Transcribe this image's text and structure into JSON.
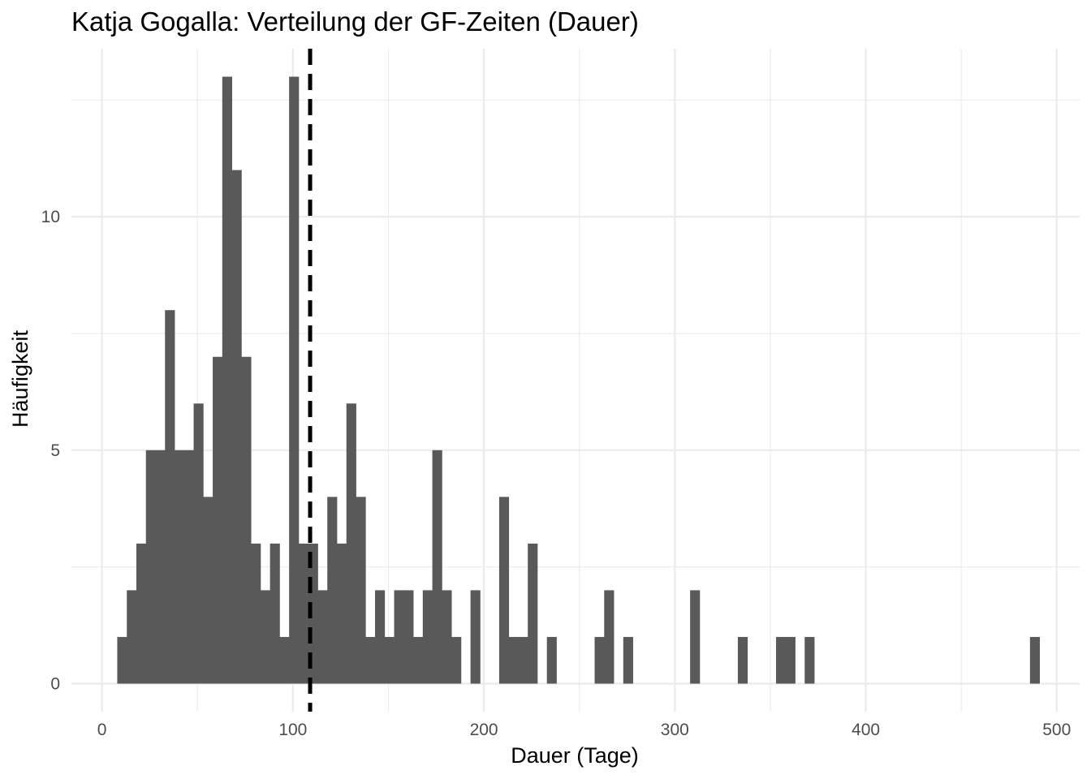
{
  "chart_data": {
    "type": "bar",
    "title": "Katja Gogalla: Verteilung der GF-Zeiten (Dauer)",
    "xlabel": "Dauer (Tage)",
    "ylabel": "Häufigkeit",
    "xlim": [
      -16,
      512
    ],
    "ylim": [
      -0.6,
      13.6
    ],
    "x_ticks": [
      0,
      100,
      200,
      300,
      400,
      500
    ],
    "x_tick_labels": [
      "0",
      "100",
      "200",
      "300",
      "400",
      "500"
    ],
    "y_ticks": [
      0,
      5,
      10
    ],
    "y_tick_labels": [
      "0",
      "5",
      "10"
    ],
    "bin_width": 5,
    "grid": true,
    "bar_color": "#595959",
    "bins_start": [
      8,
      13,
      18,
      23,
      28,
      33,
      38,
      43,
      48,
      53,
      58,
      63,
      68,
      73,
      78,
      83,
      88,
      93,
      98,
      103,
      108,
      113,
      118,
      123,
      128,
      133,
      138,
      143,
      148,
      153,
      158,
      163,
      168,
      173,
      178,
      183,
      193,
      208,
      213,
      218,
      223,
      233,
      258,
      263,
      273,
      308,
      333,
      353,
      358,
      368,
      486
    ],
    "counts": [
      1,
      2,
      3,
      5,
      5,
      8,
      5,
      5,
      6,
      4,
      7,
      13,
      11,
      7,
      3,
      2,
      3,
      1,
      13,
      3,
      3,
      2,
      4,
      3,
      6,
      4,
      1,
      2,
      1,
      2,
      2,
      1,
      2,
      5,
      2,
      1,
      2,
      4,
      1,
      1,
      3,
      1,
      1,
      2,
      1,
      2,
      1,
      1,
      1,
      1,
      1
    ],
    "reference_line": {
      "x": 109,
      "style": "dashed",
      "color": "#000000"
    }
  }
}
